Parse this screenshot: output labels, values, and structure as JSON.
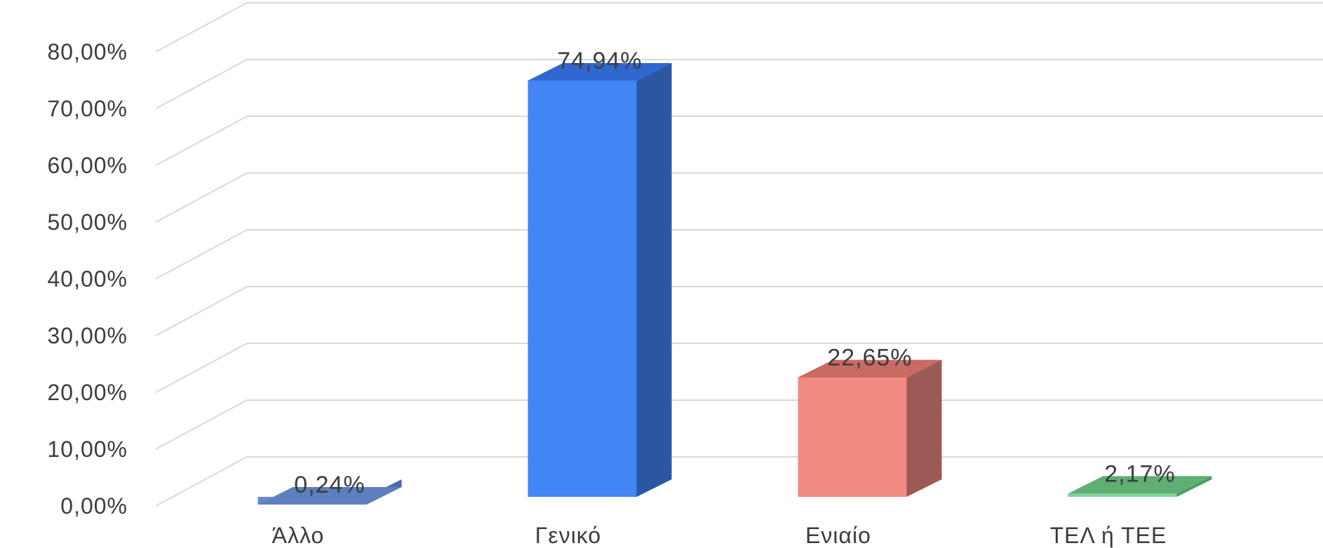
{
  "chart_data": {
    "type": "bar",
    "style": "3d-column",
    "categories": [
      "Άλλο",
      "Γενικό",
      "Ενιαίο",
      "ΤΕΛ ή ΤΕΕ"
    ],
    "values": [
      0.24,
      74.94,
      22.65,
      2.17
    ],
    "data_labels": [
      "0,24%",
      "74,94%",
      "22,65%",
      "2,17%"
    ],
    "ylim": [
      0,
      80
    ],
    "yticks": [
      0,
      10,
      20,
      30,
      40,
      50,
      60,
      70,
      80
    ],
    "ytick_labels": [
      "0,00%",
      "10,00%",
      "20,00%",
      "30,00%",
      "40,00%",
      "50,00%",
      "60,00%",
      "70,00%",
      "80,00%"
    ],
    "grid": true,
    "legend": "none",
    "title": "",
    "xlabel": "",
    "ylabel": "",
    "colors": {
      "front": [
        "#6b8bc6",
        "#4285f4",
        "#f28b82",
        "#7fd49a"
      ],
      "side": [
        "#4a6aa4",
        "#2a56a2",
        "#9c5a55",
        "#4f9a64"
      ],
      "top": [
        "#5d7fbe",
        "#2f67cf",
        "#c96a63",
        "#5fae74"
      ],
      "grid": "#d9d9d9",
      "text": "#3c3c3c"
    }
  }
}
